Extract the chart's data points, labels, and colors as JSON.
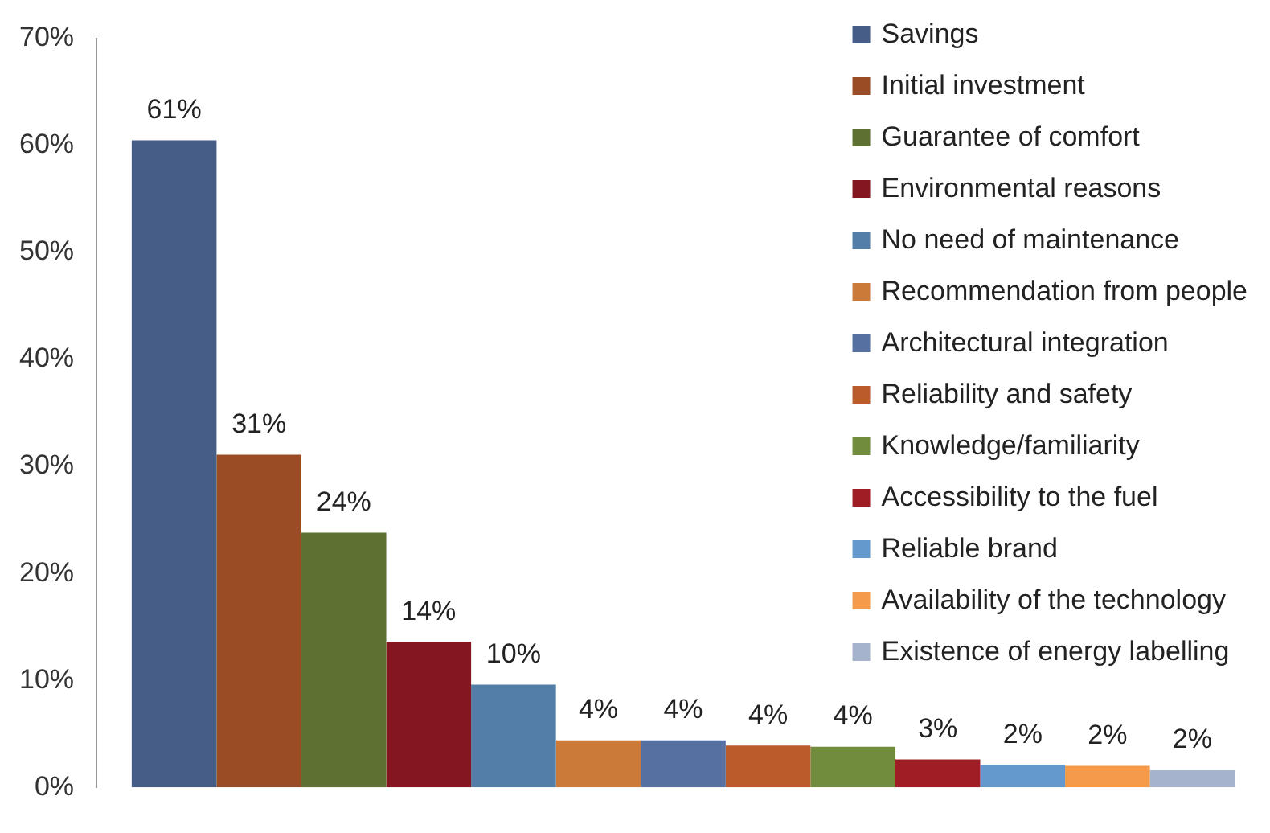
{
  "chart_data": {
    "type": "bar",
    "categories": [
      null
    ],
    "series": [
      {
        "name": "Savings",
        "color": "#465d87",
        "values": [
          60.5
        ],
        "value_labels": [
          "61%"
        ]
      },
      {
        "name": "Initial investment",
        "color": "#9a4c24",
        "values": [
          31.1
        ],
        "value_labels": [
          "31%"
        ]
      },
      {
        "name": "Guarantee of comfort",
        "color": "#5e7132",
        "values": [
          23.8
        ],
        "value_labels": [
          "24%"
        ]
      },
      {
        "name": "Environmental reasons",
        "color": "#83161e",
        "values": [
          13.6
        ],
        "value_labels": [
          "14%"
        ]
      },
      {
        "name": "No need of maintenance",
        "color": "#527ea8",
        "values": [
          9.6
        ],
        "value_labels": [
          "10%"
        ]
      },
      {
        "name": "Recommendation from people",
        "color": "#cc7a3a",
        "values": [
          4.4
        ],
        "value_labels": [
          "4%"
        ]
      },
      {
        "name": "Architectural integration",
        "color": "#5670a2",
        "values": [
          4.4
        ],
        "value_labels": [
          "4%"
        ]
      },
      {
        "name": "Reliability and safety",
        "color": "#bb5a2a",
        "values": [
          3.9
        ],
        "value_labels": [
          "4%"
        ]
      },
      {
        "name": "Knowledge/familiarity",
        "color": "#718c3c",
        "values": [
          3.8
        ],
        "value_labels": [
          "4%"
        ]
      },
      {
        "name": "Accessibility to the fuel",
        "color": "#a11d26",
        "values": [
          2.6
        ],
        "value_labels": [
          "3%"
        ]
      },
      {
        "name": "Reliable brand",
        "color": "#6399cc",
        "values": [
          2.1
        ],
        "value_labels": [
          "2%"
        ]
      },
      {
        "name": "Availability of the technology",
        "color": "#f59a4a",
        "values": [
          2.0
        ],
        "value_labels": [
          "2%"
        ]
      },
      {
        "name": "Existence of energy labelling",
        "color": "#a5b3cc",
        "values": [
          1.6
        ],
        "value_labels": [
          "2%"
        ]
      }
    ],
    "ylim": [
      0,
      70
    ],
    "yticks": [
      {
        "value": 0,
        "label": "0%"
      },
      {
        "value": 10,
        "label": "10%"
      },
      {
        "value": 20,
        "label": "20%"
      },
      {
        "value": 30,
        "label": "30%"
      },
      {
        "value": 40,
        "label": "40%"
      },
      {
        "value": 50,
        "label": "50%"
      },
      {
        "value": 60,
        "label": "60%"
      },
      {
        "value": 70,
        "label": "70%"
      }
    ],
    "legend": "top right"
  }
}
